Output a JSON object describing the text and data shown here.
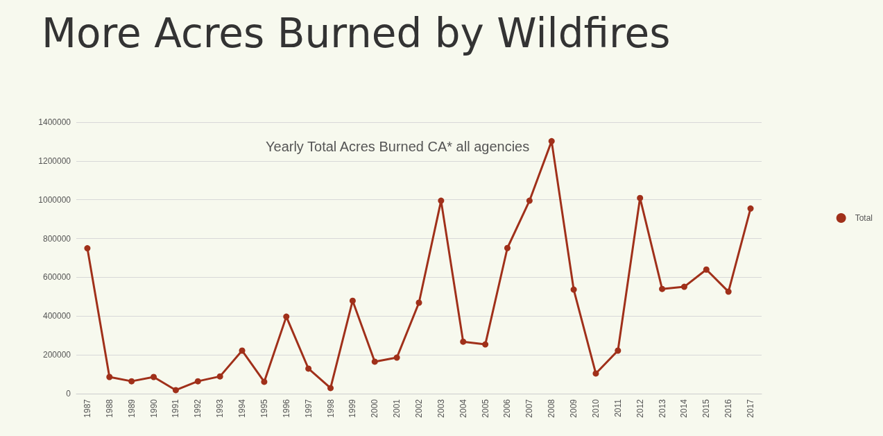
{
  "chart_data": {
    "type": "line",
    "title": "More Acres Burned by Wildfires",
    "subtitle": "Yearly Total Acres Burned CA* all agencies",
    "categories": [
      "1987",
      "1988",
      "1989",
      "1990",
      "1991",
      "1992",
      "1993",
      "1994",
      "1995",
      "1996",
      "1997",
      "1998",
      "1999",
      "2000",
      "2001",
      "2002",
      "2003",
      "2004",
      "2005",
      "2006",
      "2007",
      "2008",
      "2009",
      "2010",
      "2011",
      "2012",
      "2013",
      "2014",
      "2015",
      "2016",
      "2017"
    ],
    "series": [
      {
        "name": "Total",
        "color": "#a0301a",
        "values": [
          750000,
          86000,
          64000,
          86000,
          18000,
          64000,
          89000,
          222000,
          61000,
          397000,
          129000,
          29000,
          479000,
          165000,
          186000,
          469000,
          995000,
          268000,
          254000,
          751000,
          995000,
          1302000,
          537000,
          104000,
          222000,
          1009000,
          540000,
          551000,
          640000,
          526000,
          955000
        ]
      }
    ],
    "ylim": [
      0,
      1400000
    ],
    "yticks": [
      0,
      200000,
      400000,
      600000,
      800000,
      1000000,
      1200000,
      1400000
    ],
    "grid": "y",
    "legend": "right",
    "marker": "circle",
    "line_style": "solid"
  }
}
